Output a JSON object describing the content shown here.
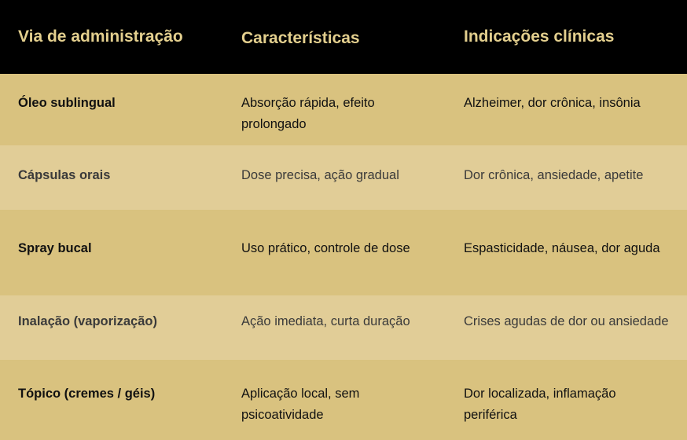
{
  "table": {
    "headers": [
      "Via de administração",
      "Características",
      "Indicações clínicas"
    ],
    "rows": [
      [
        "Óleo sublingual",
        "Absorção rápida, efeito prolongado",
        "Alzheimer, dor crônica, insônia"
      ],
      [
        "Cápsulas orais",
        "Dose precisa, ação gradual",
        "Dor crônica, ansiedade, apetite"
      ],
      [
        "Spray bucal",
        "Uso prático, controle de dose",
        "Espasticidade, náusea, dor aguda"
      ],
      [
        "Inalação (vaporização)",
        "Ação imediata, curta duração",
        "Crises agudas de dor ou ansiedade"
      ],
      [
        "Tópico (cremes / géis)",
        "Aplicação local, sem psicoatividade",
        "Dor localizada, inflamação periférica"
      ]
    ]
  },
  "colors": {
    "header_bg": "#000000",
    "header_text": "#e3cf8e",
    "row_dark": "#d9c27f",
    "row_light": "#e1cd97"
  }
}
